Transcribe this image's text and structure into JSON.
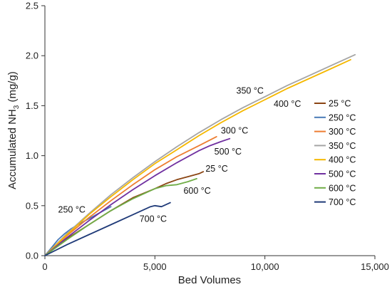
{
  "chart_data": {
    "type": "line",
    "xlabel": "Bed Volumes",
    "ylabel_main": "Accumulated NH",
    "ylabel_sub": "3",
    "ylabel_unit": " (mg/g)",
    "xlim": [
      0,
      15000
    ],
    "ylim": [
      0,
      2.5
    ],
    "xticks": [
      0,
      5000,
      10000,
      15000
    ],
    "xtick_labels": [
      "0",
      "5,000",
      "10,000",
      "15,000"
    ],
    "yticks": [
      0,
      0.5,
      1.0,
      1.5,
      2.0,
      2.5
    ],
    "ytick_labels": [
      "0.0",
      "0.5",
      "1.0",
      "1.5",
      "2.0",
      "2.5"
    ],
    "grid": false,
    "legend_position": "right",
    "series": [
      {
        "name": "25 °C",
        "color": "#8B4513",
        "x": [
          0,
          500,
          1000,
          2000,
          3000,
          4000,
          5000,
          5500,
          6000,
          6500,
          7000,
          7200
        ],
        "y": [
          0,
          0.09,
          0.17,
          0.31,
          0.45,
          0.58,
          0.67,
          0.72,
          0.76,
          0.79,
          0.82,
          0.84
        ]
      },
      {
        "name": "250 °C",
        "color": "#4A7BB7",
        "x": [
          0,
          300,
          600,
          900,
          1200,
          1500,
          2000,
          3000
        ],
        "y": [
          0,
          0.08,
          0.16,
          0.22,
          0.27,
          0.31,
          0.37,
          0.49
        ]
      },
      {
        "name": "300 °C",
        "color": "#ED7D31",
        "x": [
          0,
          500,
          1000,
          2000,
          3000,
          4000,
          5000,
          6000,
          7000,
          7800
        ],
        "y": [
          0,
          0.1,
          0.2,
          0.38,
          0.55,
          0.71,
          0.86,
          0.99,
          1.1,
          1.19
        ]
      },
      {
        "name": "350 °C",
        "color": "#A5A5A5",
        "x": [
          0,
          1000,
          2000,
          3000,
          4000,
          5000,
          6000,
          7000,
          8000,
          9000,
          10000,
          11000,
          12000,
          13000,
          14100
        ],
        "y": [
          0,
          0.22,
          0.42,
          0.61,
          0.78,
          0.94,
          1.09,
          1.23,
          1.36,
          1.48,
          1.59,
          1.7,
          1.8,
          1.9,
          2.01
        ]
      },
      {
        "name": "400 °C",
        "color": "#F5B800",
        "x": [
          0,
          1000,
          2000,
          3000,
          4000,
          5000,
          6000,
          7000,
          8000,
          9000,
          10000,
          11000,
          12000,
          13000,
          13900
        ],
        "y": [
          0,
          0.21,
          0.41,
          0.59,
          0.76,
          0.92,
          1.06,
          1.2,
          1.33,
          1.45,
          1.56,
          1.67,
          1.77,
          1.87,
          1.96
        ]
      },
      {
        "name": "500 °C",
        "color": "#7030A0",
        "x": [
          0,
          1000,
          2000,
          3000,
          4000,
          5000,
          6000,
          7000,
          7500,
          8000,
          8400
        ],
        "y": [
          0,
          0.18,
          0.35,
          0.51,
          0.66,
          0.8,
          0.93,
          1.05,
          1.1,
          1.14,
          1.17
        ]
      },
      {
        "name": "600 °C",
        "color": "#70AD47",
        "x": [
          0,
          1000,
          2000,
          3000,
          4000,
          5000,
          5500,
          6000,
          6500,
          6900
        ],
        "y": [
          0,
          0.16,
          0.31,
          0.45,
          0.57,
          0.67,
          0.7,
          0.71,
          0.74,
          0.77
        ]
      },
      {
        "name": "700 °C",
        "color": "#1F3A78",
        "x": [
          0,
          1000,
          2000,
          3000,
          4000,
          4800,
          5000,
          5300,
          5700
        ],
        "y": [
          0,
          0.11,
          0.21,
          0.31,
          0.41,
          0.49,
          0.5,
          0.49,
          0.53
        ]
      }
    ],
    "annotations": [
      {
        "text": "350 °C",
        "x": 8700,
        "y": 1.62
      },
      {
        "text": "400 °C",
        "x": 10400,
        "y": 1.49
      },
      {
        "text": "300 °C",
        "x": 8000,
        "y": 1.22
      },
      {
        "text": "500 °C",
        "x": 7700,
        "y": 1.01
      },
      {
        "text": "25 °C",
        "x": 7300,
        "y": 0.84
      },
      {
        "text": "600 °C",
        "x": 6300,
        "y": 0.62
      },
      {
        "text": "250 °C",
        "x": 600,
        "y": 0.43
      },
      {
        "text": "700 °C",
        "x": 4300,
        "y": 0.34
      }
    ]
  }
}
